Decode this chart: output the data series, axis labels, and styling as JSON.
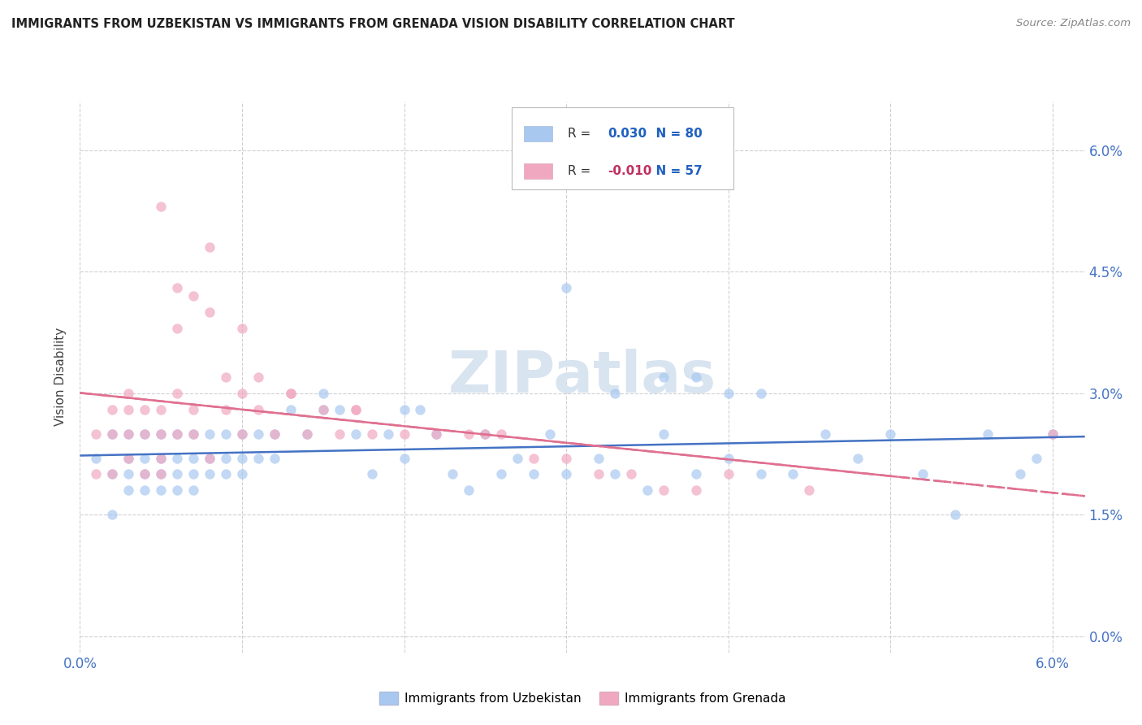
{
  "title": "IMMIGRANTS FROM UZBEKISTAN VS IMMIGRANTS FROM GRENADA VISION DISABILITY CORRELATION CHART",
  "source": "Source: ZipAtlas.com",
  "ylabel": "Vision Disability",
  "r_uzbekistan": 0.03,
  "n_uzbekistan": 80,
  "r_grenada": -0.01,
  "n_grenada": 57,
  "color_uzbekistan": "#a8c8f0",
  "color_grenada": "#f0a8c0",
  "line_color_uzbekistan": "#4472c4",
  "line_color_grenada": "#e07090",
  "watermark_color": "#d8e4f0",
  "xlim": [
    0.0,
    0.062
  ],
  "ylim": [
    -0.002,
    0.066
  ],
  "yticks": [
    0.0,
    0.015,
    0.03,
    0.045,
    0.06
  ],
  "ytick_labels": [
    "0.0%",
    "1.5%",
    "3.0%",
    "4.5%",
    "6.0%"
  ],
  "tick_color": "#4472c4",
  "grid_color": "#d0d0d0",
  "title_color": "#222222",
  "axis_label_color": "#444444",
  "legend_r_color_uzb": "#2060c0",
  "legend_r_color_gre": "#c03060",
  "legend_n_color": "#2060c0",
  "uzbekistan_x": [
    0.001,
    0.002,
    0.002,
    0.002,
    0.003,
    0.003,
    0.003,
    0.003,
    0.004,
    0.004,
    0.004,
    0.004,
    0.005,
    0.005,
    0.005,
    0.005,
    0.006,
    0.006,
    0.006,
    0.006,
    0.007,
    0.007,
    0.007,
    0.007,
    0.008,
    0.008,
    0.008,
    0.009,
    0.009,
    0.009,
    0.01,
    0.01,
    0.01,
    0.011,
    0.011,
    0.012,
    0.012,
    0.013,
    0.014,
    0.015,
    0.015,
    0.016,
    0.017,
    0.018,
    0.019,
    0.02,
    0.02,
    0.021,
    0.022,
    0.023,
    0.024,
    0.025,
    0.026,
    0.027,
    0.028,
    0.029,
    0.03,
    0.032,
    0.033,
    0.035,
    0.036,
    0.038,
    0.04,
    0.042,
    0.044,
    0.046,
    0.048,
    0.05,
    0.052,
    0.054,
    0.056,
    0.03,
    0.033,
    0.036,
    0.038,
    0.04,
    0.042,
    0.058,
    0.059,
    0.06
  ],
  "uzbekistan_y": [
    0.022,
    0.02,
    0.025,
    0.015,
    0.022,
    0.018,
    0.02,
    0.025,
    0.02,
    0.022,
    0.025,
    0.018,
    0.022,
    0.02,
    0.025,
    0.018,
    0.022,
    0.025,
    0.02,
    0.018,
    0.022,
    0.025,
    0.02,
    0.018,
    0.025,
    0.022,
    0.02,
    0.025,
    0.022,
    0.02,
    0.025,
    0.022,
    0.02,
    0.025,
    0.022,
    0.025,
    0.022,
    0.028,
    0.025,
    0.028,
    0.03,
    0.028,
    0.025,
    0.02,
    0.025,
    0.028,
    0.022,
    0.028,
    0.025,
    0.02,
    0.018,
    0.025,
    0.02,
    0.022,
    0.02,
    0.025,
    0.02,
    0.022,
    0.02,
    0.018,
    0.025,
    0.02,
    0.022,
    0.02,
    0.02,
    0.025,
    0.022,
    0.025,
    0.02,
    0.015,
    0.025,
    0.043,
    0.03,
    0.032,
    0.032,
    0.03,
    0.03,
    0.02,
    0.022,
    0.025
  ],
  "grenada_x": [
    0.001,
    0.001,
    0.002,
    0.002,
    0.002,
    0.003,
    0.003,
    0.003,
    0.003,
    0.004,
    0.004,
    0.004,
    0.005,
    0.005,
    0.005,
    0.005,
    0.006,
    0.006,
    0.007,
    0.007,
    0.008,
    0.008,
    0.009,
    0.01,
    0.01,
    0.011,
    0.012,
    0.013,
    0.014,
    0.015,
    0.016,
    0.017,
    0.018,
    0.02,
    0.022,
    0.024,
    0.025,
    0.026,
    0.028,
    0.03,
    0.032,
    0.034,
    0.036,
    0.038,
    0.04,
    0.005,
    0.006,
    0.006,
    0.007,
    0.008,
    0.009,
    0.01,
    0.011,
    0.013,
    0.017,
    0.045,
    0.06
  ],
  "grenada_y": [
    0.025,
    0.02,
    0.028,
    0.025,
    0.02,
    0.03,
    0.028,
    0.025,
    0.022,
    0.028,
    0.025,
    0.02,
    0.028,
    0.025,
    0.022,
    0.02,
    0.03,
    0.025,
    0.028,
    0.025,
    0.048,
    0.022,
    0.028,
    0.025,
    0.038,
    0.028,
    0.025,
    0.03,
    0.025,
    0.028,
    0.025,
    0.028,
    0.025,
    0.025,
    0.025,
    0.025,
    0.025,
    0.025,
    0.022,
    0.022,
    0.02,
    0.02,
    0.018,
    0.018,
    0.02,
    0.053,
    0.043,
    0.038,
    0.042,
    0.04,
    0.032,
    0.03,
    0.032,
    0.03,
    0.028,
    0.018,
    0.025
  ]
}
